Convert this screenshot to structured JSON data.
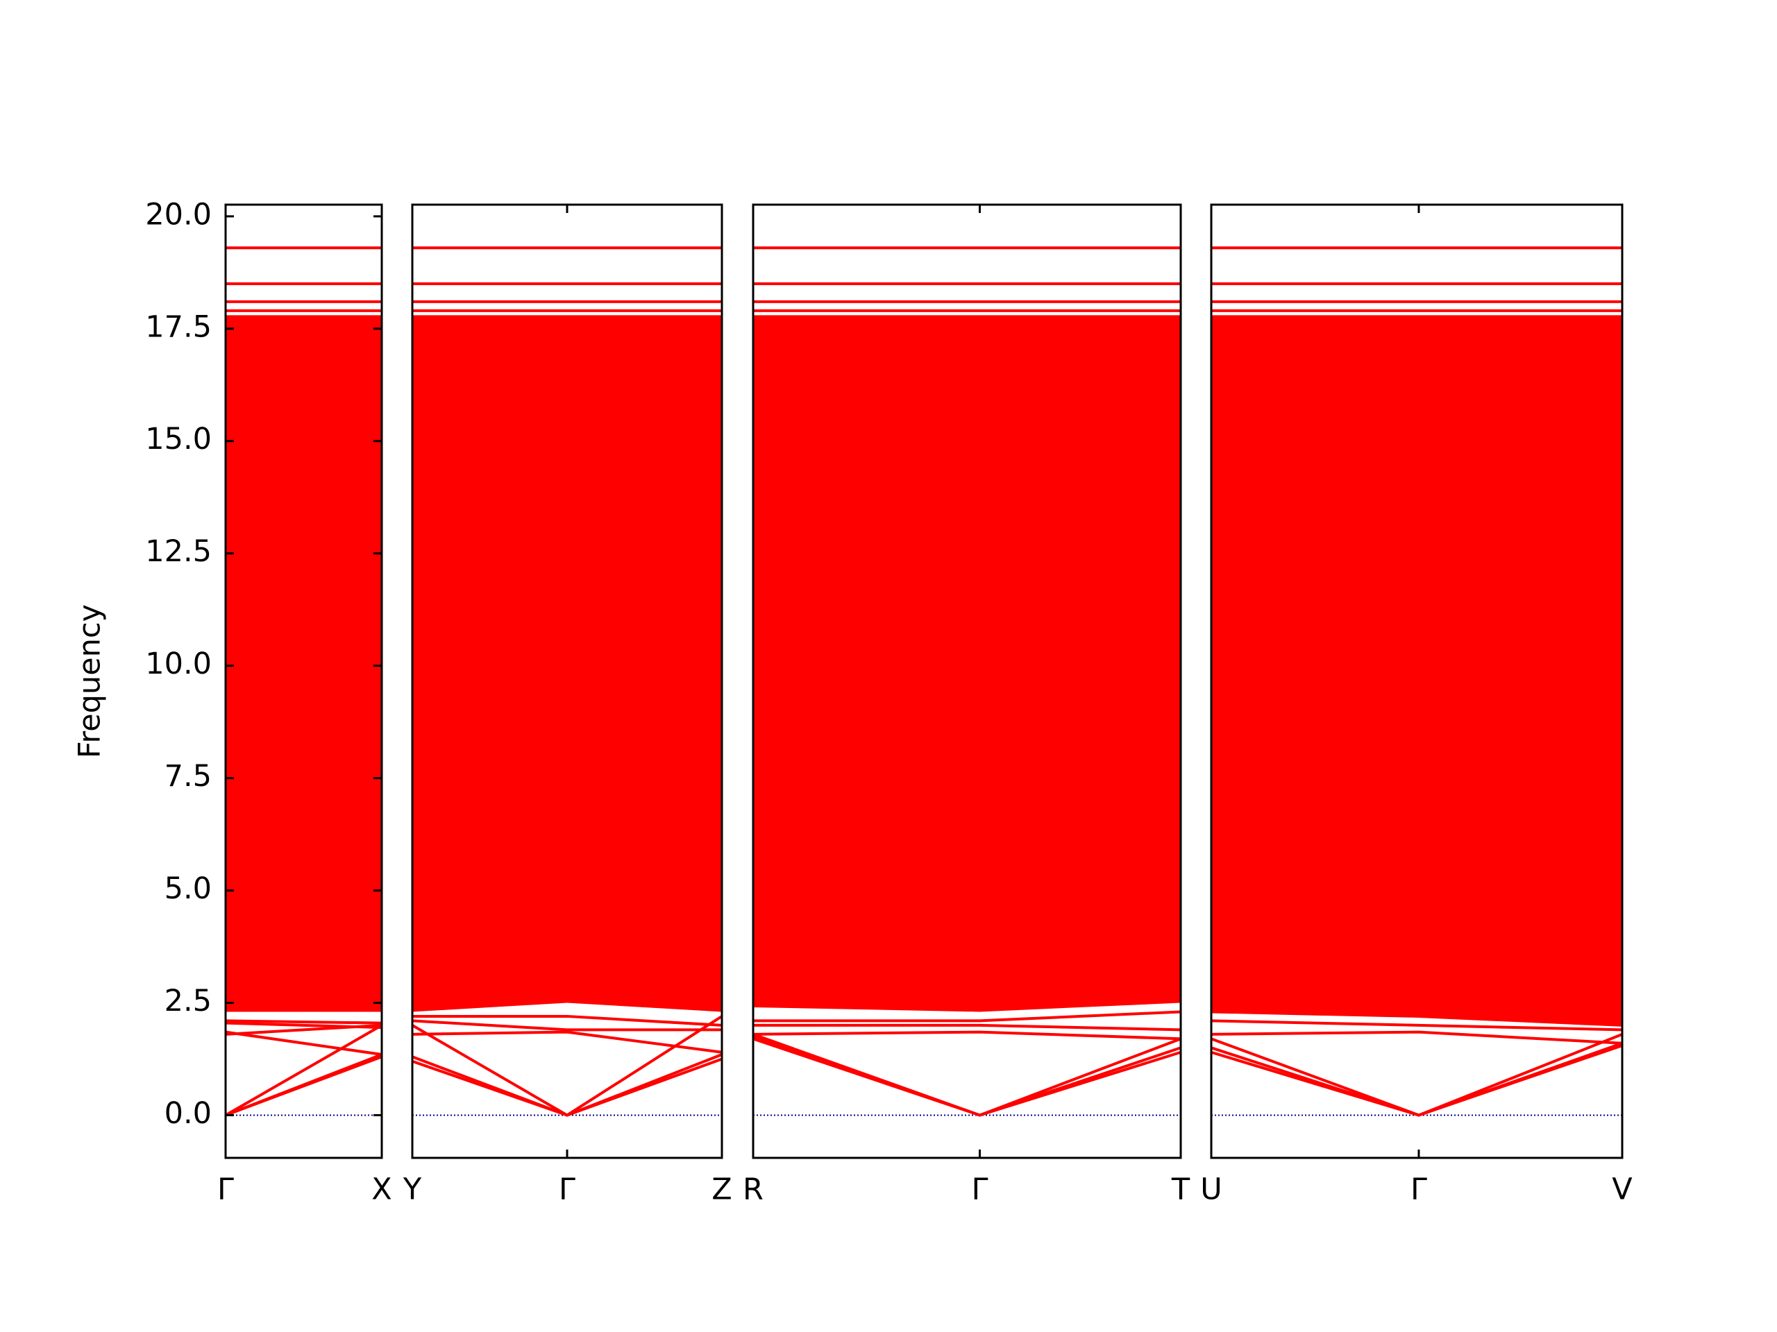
{
  "chart_data": [
    {
      "type": "line",
      "ylabel": "Frequency",
      "color": "#ff0000",
      "x": [
        0,
        1
      ],
      "xlim": [
        0,
        1
      ],
      "xticks": [
        {
          "value": 0,
          "label": "Γ"
        },
        {
          "value": 1,
          "label": "X"
        }
      ],
      "ylim": [
        -0.95,
        20.26
      ],
      "yticks": [
        {
          "value": 0,
          "label": "0.0"
        },
        {
          "value": 2.5,
          "label": "2.5"
        },
        {
          "value": 5,
          "label": "5.0"
        },
        {
          "value": 7.5,
          "label": "7.5"
        },
        {
          "value": 10,
          "label": "10.0"
        },
        {
          "value": 12.5,
          "label": "12.5"
        },
        {
          "value": 15,
          "label": "15.0"
        },
        {
          "value": 17.5,
          "label": "17.5"
        },
        {
          "value": 20,
          "label": "20.0"
        }
      ],
      "zero_line": {
        "value": 0,
        "color": "#00008b"
      },
      "band_region": {
        "lower": [
          2.3,
          2.3
        ],
        "upper": [
          17.8,
          17.8
        ]
      },
      "series": [
        {
          "values": [
            0,
            1.3
          ]
        },
        {
          "values": [
            0,
            1.35
          ]
        },
        {
          "values": [
            0,
            2.0
          ]
        },
        {
          "values": [
            1.85,
            1.35
          ]
        },
        {
          "values": [
            2.05,
            1.95
          ]
        },
        {
          "values": [
            2.1,
            2.05
          ]
        },
        {
          "values": [
            1.8,
            2.0
          ]
        },
        {
          "values": [
            17.9,
            17.9
          ]
        },
        {
          "values": [
            18.1,
            18.1
          ]
        },
        {
          "values": [
            18.5,
            18.5
          ]
        },
        {
          "values": [
            19.3,
            19.3
          ]
        }
      ]
    },
    {
      "type": "line",
      "color": "#ff0000",
      "x": [
        0,
        1,
        2
      ],
      "xlim": [
        0,
        2
      ],
      "xticks": [
        {
          "value": 0,
          "label": "Y"
        },
        {
          "value": 1,
          "label": "Γ"
        },
        {
          "value": 2,
          "label": "Z"
        }
      ],
      "ylim": [
        -0.95,
        20.26
      ],
      "zero_line": {
        "value": 0,
        "color": "#00008b"
      },
      "band_region": {
        "lower": [
          2.3,
          2.5,
          2.3
        ],
        "upper": [
          17.8,
          17.8,
          17.8
        ]
      },
      "series": [
        {
          "values": [
            1.3,
            0,
            1.25
          ]
        },
        {
          "values": [
            1.2,
            0,
            1.35
          ]
        },
        {
          "values": [
            2.0,
            0,
            2.2
          ]
        },
        {
          "values": [
            1.8,
            1.85,
            1.4
          ]
        },
        {
          "values": [
            2.1,
            1.9,
            1.9
          ]
        },
        {
          "values": [
            2.2,
            2.2,
            2.0
          ]
        },
        {
          "values": [
            17.9,
            17.9,
            17.9
          ]
        },
        {
          "values": [
            18.1,
            18.1,
            18.1
          ]
        },
        {
          "values": [
            18.5,
            18.5,
            18.5
          ]
        },
        {
          "values": [
            19.3,
            19.3,
            19.3
          ]
        }
      ]
    },
    {
      "type": "line",
      "color": "#ff0000",
      "x": [
        0,
        1.06,
        2
      ],
      "xlim": [
        0,
        2
      ],
      "xticks": [
        {
          "value": 0,
          "label": "R"
        },
        {
          "value": 1.06,
          "label": "Γ"
        },
        {
          "value": 2,
          "label": "T"
        }
      ],
      "ylim": [
        -0.95,
        20.26
      ],
      "zero_line": {
        "value": 0,
        "color": "#00008b"
      },
      "band_region": {
        "lower": [
          2.4,
          2.3,
          2.5
        ],
        "upper": [
          17.8,
          17.8,
          17.8
        ]
      },
      "series": [
        {
          "values": [
            1.7,
            0,
            1.4
          ]
        },
        {
          "values": [
            1.8,
            0,
            1.5
          ]
        },
        {
          "values": [
            1.75,
            0,
            1.7
          ]
        },
        {
          "values": [
            1.8,
            1.85,
            1.7
          ]
        },
        {
          "values": [
            2.0,
            2.0,
            1.9
          ]
        },
        {
          "values": [
            2.1,
            2.1,
            2.3
          ]
        },
        {
          "values": [
            17.9,
            17.9,
            17.9
          ]
        },
        {
          "values": [
            18.1,
            18.1,
            18.1
          ]
        },
        {
          "values": [
            18.5,
            18.5,
            18.5
          ]
        },
        {
          "values": [
            19.3,
            19.3,
            19.3
          ]
        }
      ]
    },
    {
      "type": "line",
      "color": "#ff0000",
      "x": [
        0,
        1.01,
        2
      ],
      "xlim": [
        0,
        2
      ],
      "xticks": [
        {
          "value": 0,
          "label": "U"
        },
        {
          "value": 1.01,
          "label": "Γ"
        },
        {
          "value": 2,
          "label": "V"
        }
      ],
      "ylim": [
        -0.95,
        20.26
      ],
      "zero_line": {
        "value": 0,
        "color": "#00008b"
      },
      "band_region": {
        "lower": [
          2.3,
          2.2,
          2.0
        ],
        "upper": [
          17.8,
          17.8,
          17.8
        ]
      },
      "series": [
        {
          "values": [
            1.4,
            0,
            1.6
          ]
        },
        {
          "values": [
            1.5,
            0,
            1.55
          ]
        },
        {
          "values": [
            1.7,
            0,
            1.8
          ]
        },
        {
          "values": [
            1.8,
            1.85,
            1.6
          ]
        },
        {
          "values": [
            2.1,
            2.0,
            1.9
          ]
        },
        {
          "values": [
            2.3,
            2.2,
            2.0
          ]
        },
        {
          "values": [
            17.9,
            17.9,
            17.9
          ]
        },
        {
          "values": [
            18.1,
            18.1,
            18.1
          ]
        },
        {
          "values": [
            18.5,
            18.5,
            18.5
          ]
        },
        {
          "values": [
            19.3,
            19.3,
            19.3
          ]
        }
      ]
    }
  ]
}
